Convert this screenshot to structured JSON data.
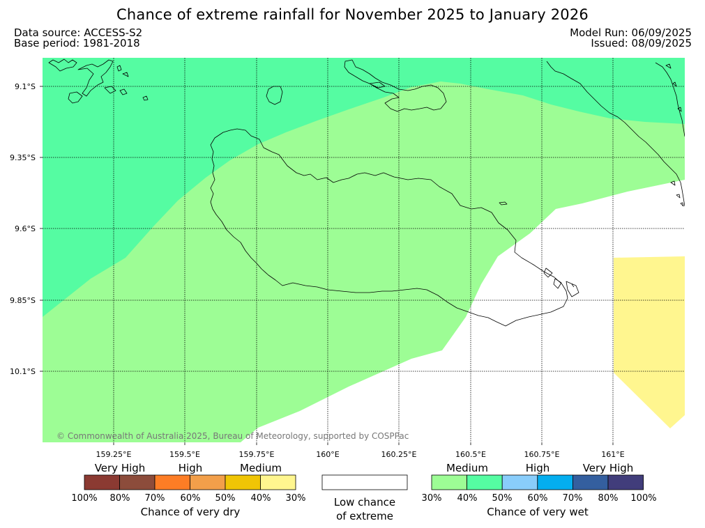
{
  "title": "Chance of extreme rainfall for November 2025 to January 2026",
  "data_source": "Data source: ACCESS-S2",
  "base_period": "Base period: 1981-2018",
  "model_run": "Model Run: 06/09/2025",
  "issued": "Issued: 08/09/2025",
  "copyright": "© Commonwealth of Australia 2025, Bureau of Meteorology, supported by COSPPac",
  "map": {
    "lat_labels": [
      "9.1°S",
      "9.35°S",
      "9.6°S",
      "9.85°S",
      "10.1°S"
    ],
    "lon_labels": [
      "159.25°E",
      "159.5°E",
      "159.75°E",
      "160°E",
      "160.25°E",
      "160.5°E",
      "160.75°E",
      "161°E"
    ]
  },
  "legend": {
    "dry": {
      "categories": [
        "Very High",
        "High",
        "Medium"
      ],
      "percentages": [
        "100%",
        "80%",
        "70%",
        "60%",
        "50%",
        "40%",
        "30%"
      ],
      "colors": [
        "#8b3a32",
        "#8c4c3b",
        "#fd7d25",
        "#f29f4a",
        "#f0c505",
        "#fff68f"
      ],
      "label": "Chance of very dry"
    },
    "low": {
      "line1": "Low chance",
      "line2": "of extreme",
      "color": "#ffffff"
    },
    "wet": {
      "categories": [
        "Medium",
        "High",
        "Very High"
      ],
      "percentages": [
        "30%",
        "40%",
        "50%",
        "60%",
        "70%",
        "80%",
        "100%"
      ],
      "colors": [
        "#9dfd95",
        "#55fca2",
        "#89cdfb",
        "#04aeef",
        "#345f9f",
        "#413d7b"
      ],
      "label": "Chance of very wet"
    }
  }
}
